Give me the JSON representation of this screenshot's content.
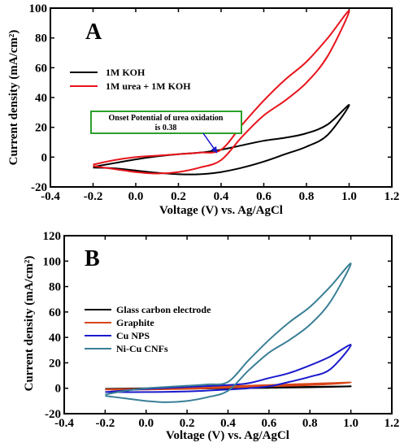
{
  "chart_data": [
    {
      "type": "line",
      "panel_label": "A",
      "xlabel": "Voltage (V) vs. Ag/AgCl",
      "ylabel": "Current density (mA/cm²)",
      "xlim": [
        -0.4,
        1.2
      ],
      "ylim": [
        -20,
        100
      ],
      "xticks": [
        -0.4,
        -0.2,
        0.0,
        0.2,
        0.4,
        0.6,
        0.8,
        1.0,
        1.2
      ],
      "yticks": [
        -20,
        0,
        20,
        40,
        60,
        80,
        100
      ],
      "xtick_labels": [
        "-0.4",
        "-0.2",
        "0.0",
        "0.2",
        "0.4",
        "0.6",
        "0.8",
        "1.0",
        "1.2"
      ],
      "ytick_labels": [
        "-20",
        "0",
        "20",
        "40",
        "60",
        "80",
        "100"
      ],
      "grid": false,
      "legend_position": "upper-left",
      "annotation": {
        "lines": [
          "Onset Potential of urea oxidation",
          "is 0.38"
        ],
        "arrow_target": [
          0.38,
          3
        ],
        "border_color": "#2ca02c"
      },
      "series": [
        {
          "name": "1M KOH",
          "color": "#000000",
          "x": [
            -0.2,
            -0.1,
            0.0,
            0.1,
            0.2,
            0.3,
            0.4,
            0.5,
            0.6,
            0.7,
            0.8,
            0.9,
            1.0,
            0.9,
            0.8,
            0.7,
            0.6,
            0.5,
            0.4,
            0.3,
            0.2,
            0.1,
            0.0,
            -0.1,
            -0.2
          ],
          "y": [
            -7,
            -7.5,
            -9,
            -10.5,
            -11.5,
            -11.5,
            -10,
            -7,
            -3,
            2,
            7,
            15,
            35,
            22,
            16,
            13,
            11,
            8,
            5,
            3,
            2,
            0.5,
            -1.5,
            -4,
            -6.5
          ]
        },
        {
          "name": "1M urea + 1M KOH",
          "color": "#e8141c",
          "x": [
            -0.2,
            -0.1,
            0.0,
            0.1,
            0.2,
            0.3,
            0.4,
            0.5,
            0.6,
            0.7,
            0.8,
            0.9,
            1.0,
            0.9,
            0.8,
            0.7,
            0.6,
            0.5,
            0.4,
            0.3,
            0.2,
            0.1,
            0.0,
            -0.1,
            -0.2
          ],
          "y": [
            -6,
            -8,
            -10,
            -11,
            -10,
            -7,
            -2,
            14,
            28,
            38,
            50,
            68,
            98,
            80,
            64,
            52,
            38,
            22,
            5,
            3,
            2,
            1,
            0,
            -2,
            -5
          ]
        }
      ]
    },
    {
      "type": "line",
      "panel_label": "B",
      "xlabel": "Voltage (V) vs. Ag/AgCl",
      "ylabel": "Current density (mA/cm²)",
      "xlim": [
        -0.4,
        1.2
      ],
      "ylim": [
        -20,
        120
      ],
      "xticks": [
        -0.4,
        -0.2,
        0.0,
        0.2,
        0.4,
        0.6,
        0.8,
        1.0,
        1.2
      ],
      "yticks": [
        -20,
        0,
        20,
        40,
        60,
        80,
        100,
        120
      ],
      "xtick_labels": [
        "-0.4",
        "-0.2",
        "0.0",
        "0.2",
        "0.4",
        "0.6",
        "0.8",
        "1.0",
        "1.2"
      ],
      "ytick_labels": [
        "-20",
        "0",
        "20",
        "40",
        "60",
        "80",
        "100",
        "120"
      ],
      "grid": false,
      "legend_position": "middle-left",
      "series": [
        {
          "name": "Glass carbon electrode",
          "color": "#000000",
          "x": [
            -0.2,
            0.0,
            0.2,
            0.4,
            0.6,
            0.8,
            1.0,
            0.8,
            0.6,
            0.4,
            0.2,
            0.0,
            -0.2
          ],
          "y": [
            -0.5,
            -0.5,
            -0.3,
            0,
            0.3,
            0.8,
            1.5,
            1.1,
            0.8,
            0.5,
            0.2,
            0,
            -0.5
          ]
        },
        {
          "name": "Graphite",
          "color": "#d9461a",
          "x": [
            -0.2,
            0.0,
            0.2,
            0.4,
            0.6,
            0.8,
            1.0,
            0.8,
            0.6,
            0.4,
            0.2,
            0.0,
            -0.2
          ],
          "y": [
            -1,
            -1,
            -0.5,
            0.5,
            1.5,
            2.5,
            4.5,
            3.5,
            2.5,
            1.5,
            0.5,
            -0.3,
            -1
          ]
        },
        {
          "name": "Cu NPS",
          "color": "#1a1acc",
          "x": [
            -0.2,
            0.0,
            0.2,
            0.4,
            0.5,
            0.6,
            0.7,
            0.8,
            0.9,
            1.0,
            0.9,
            0.8,
            0.7,
            0.6,
            0.5,
            0.4,
            0.2,
            0.0,
            -0.2
          ],
          "y": [
            -3,
            -3,
            -2.5,
            -1,
            0,
            1.5,
            5,
            9,
            15,
            34,
            25,
            18,
            12,
            8,
            4,
            2.5,
            1,
            -0.5,
            -3
          ]
        },
        {
          "name": "Ni-Cu CNFs",
          "color": "#3a7f96",
          "x": [
            -0.2,
            -0.1,
            0.0,
            0.1,
            0.2,
            0.3,
            0.4,
            0.5,
            0.6,
            0.7,
            0.8,
            0.9,
            1.0,
            0.9,
            0.8,
            0.7,
            0.6,
            0.5,
            0.4,
            0.3,
            0.2,
            0.1,
            0.0,
            -0.1,
            -0.2
          ],
          "y": [
            -6,
            -8,
            -10,
            -11,
            -10,
            -7,
            -2,
            14,
            28,
            38,
            50,
            68,
            98,
            80,
            64,
            52,
            38,
            22,
            5,
            3,
            2,
            1,
            0,
            -2,
            -5
          ]
        }
      ]
    }
  ]
}
